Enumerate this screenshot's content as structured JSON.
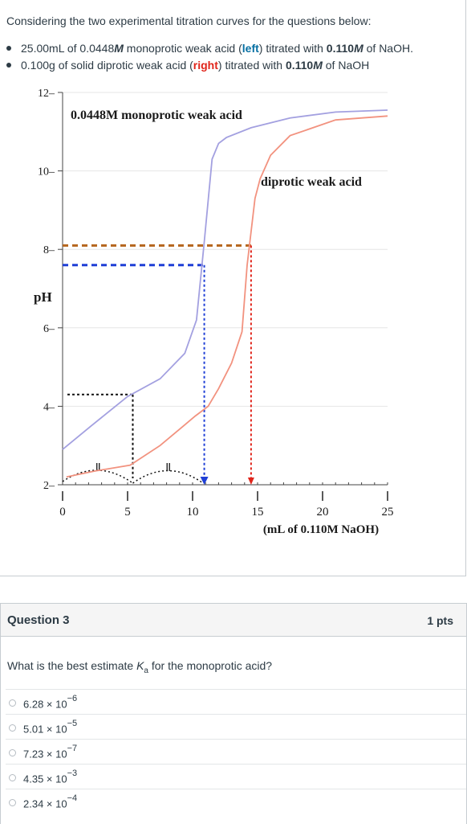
{
  "intro": {
    "text": "Considering the two experimental titration curves for the questions below:",
    "bullet1": {
      "part1": "25.00mL of 0.0448",
      "part1_M": "M",
      "part2": " monoprotic weak acid (",
      "left": "left",
      "part3": ") titrated with ",
      "conc": "0.110",
      "conc_M": "M",
      "part4": " of NaOH."
    },
    "bullet2": {
      "part1": "0.100g of solid diprotic weak acid (",
      "right": "right",
      "part2": ") titrated with ",
      "conc": "0.110",
      "conc_M": "M",
      "part3": " of NaOH"
    }
  },
  "chart_data": {
    "type": "line",
    "xlabel": "(mL of 0.110M NaOH)",
    "ylabel": "pH",
    "xlim": [
      0,
      25
    ],
    "ylim": [
      2,
      12
    ],
    "x_ticks": [
      "0",
      "5",
      "10",
      "15",
      "20",
      "25"
    ],
    "y_ticks": [
      "2",
      "4",
      "6",
      "8",
      "10",
      "12"
    ],
    "annotations": {
      "monoprotic_label": "0.0448M monoprotic weak acid",
      "diprotic_label": "diprotic weak acid"
    },
    "series": [
      {
        "name": "0.0448M monoprotic weak acid",
        "color": "#a3a0e0",
        "x": [
          0,
          2.2,
          5.0,
          7.5,
          9.4,
          10.3,
          10.9,
          11.5,
          12.0,
          12.6,
          14.5,
          17.5,
          21.0,
          25.0
        ],
        "y": [
          2.9,
          3.5,
          4.25,
          4.7,
          5.35,
          6.2,
          8.2,
          10.3,
          10.7,
          10.85,
          11.1,
          11.35,
          11.5,
          11.55
        ]
      },
      {
        "name": "diprotic weak acid",
        "color": "#f2927f",
        "x": [
          0.3,
          2.5,
          5.2,
          7.5,
          9.3,
          10.2,
          11.2,
          12.0,
          13.0,
          13.8,
          14.2,
          14.8,
          15.2,
          16.0,
          17.5,
          21.0,
          25.0
        ],
        "y": [
          2.2,
          2.35,
          2.5,
          3.0,
          3.5,
          3.75,
          4.0,
          4.45,
          5.1,
          5.9,
          7.6,
          9.3,
          9.8,
          10.4,
          10.9,
          11.3,
          11.4
        ]
      }
    ],
    "guides": {
      "brown_dashed_pH": 8.1,
      "blue_dashed_pH": 7.6,
      "black_dashed_pH": 4.3,
      "blue_arrow_x": 10.9,
      "red_arrow_x": 14.5,
      "black_half_equiv_x": 5.4
    },
    "colors": {
      "brown": "#b5651d",
      "blue": "#1f3fd6",
      "red": "#e0251b",
      "axis": "#444444",
      "grid": "#e6e6e6"
    }
  },
  "question": {
    "title": "Question 3",
    "points": "1 pts",
    "text_before": "What is the best estimate ",
    "k": "K",
    "k_sub": "a",
    "text_after": " for the monoprotic acid?",
    "answers": [
      {
        "base": "6.28 × 10",
        "exp": "−6"
      },
      {
        "base": "5.01 × 10",
        "exp": "−5"
      },
      {
        "base": "7.23 × 10",
        "exp": "−7"
      },
      {
        "base": "4.35 × 10",
        "exp": "−3"
      },
      {
        "base": "2.34 × 10",
        "exp": "−4"
      }
    ]
  }
}
